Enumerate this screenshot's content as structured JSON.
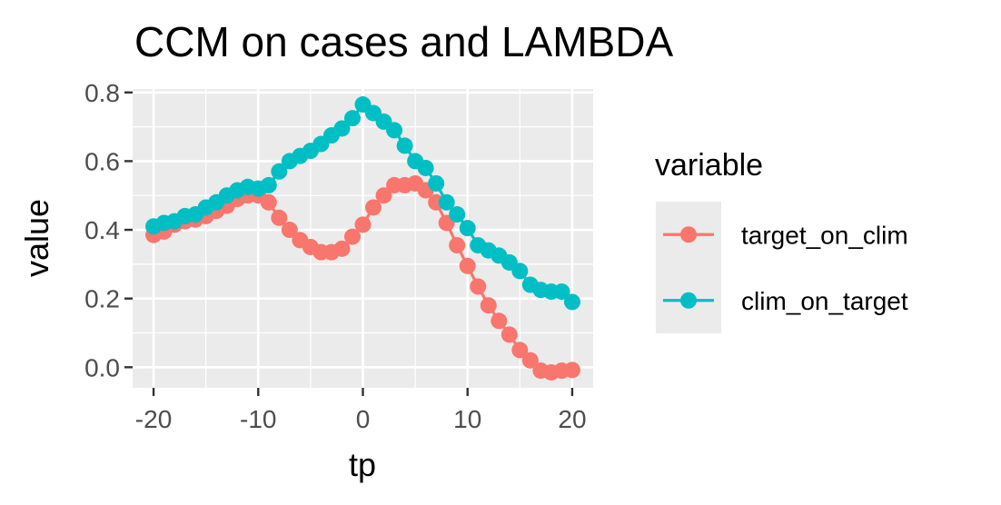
{
  "chart_data": {
    "type": "line",
    "title": "CCM on cases and LAMBDA",
    "xlabel": "tp",
    "ylabel": "value",
    "xlim": [
      -22,
      22
    ],
    "ylim": [
      -0.06,
      0.81
    ],
    "x_ticks": [
      -20,
      -10,
      0,
      10,
      20
    ],
    "x_tick_labels": [
      "-20",
      "-10",
      "0",
      "10",
      "20"
    ],
    "x_minor_ticks": [
      -15,
      -5,
      5,
      15
    ],
    "y_ticks": [
      0.0,
      0.2,
      0.4,
      0.6,
      0.8
    ],
    "y_tick_labels": [
      "0.0",
      "0.2",
      "0.4",
      "0.6",
      "0.8"
    ],
    "y_minor_ticks": [
      0.1,
      0.3,
      0.5,
      0.7
    ],
    "grid": true,
    "panel_background": "#ebebeb",
    "legend": {
      "title": "variable",
      "position": "right"
    },
    "x": [
      -20,
      -19,
      -18,
      -17,
      -16,
      -15,
      -14,
      -13,
      -12,
      -11,
      -10,
      -9,
      -8,
      -7,
      -6,
      -5,
      -4,
      -3,
      -2,
      -1,
      0,
      1,
      2,
      3,
      4,
      5,
      6,
      7,
      8,
      9,
      10,
      11,
      12,
      13,
      14,
      15,
      16,
      17,
      18,
      19,
      20
    ],
    "series": [
      {
        "name": "target_on_clim",
        "color": "#F8766D",
        "values": [
          0.385,
          0.395,
          0.415,
          0.425,
          0.43,
          0.44,
          0.455,
          0.47,
          0.49,
          0.5,
          0.5,
          0.48,
          0.435,
          0.4,
          0.37,
          0.35,
          0.335,
          0.335,
          0.345,
          0.38,
          0.415,
          0.465,
          0.5,
          0.53,
          0.53,
          0.535,
          0.515,
          0.48,
          0.42,
          0.355,
          0.295,
          0.235,
          0.18,
          0.135,
          0.095,
          0.05,
          0.02,
          -0.01,
          -0.015,
          -0.01,
          -0.008
        ]
      },
      {
        "name": "clim_on_target",
        "color": "#00BFC4",
        "values": [
          0.41,
          0.42,
          0.425,
          0.44,
          0.445,
          0.465,
          0.48,
          0.5,
          0.515,
          0.525,
          0.52,
          0.53,
          0.57,
          0.6,
          0.615,
          0.63,
          0.65,
          0.675,
          0.695,
          0.725,
          0.765,
          0.74,
          0.715,
          0.69,
          0.645,
          0.6,
          0.58,
          0.535,
          0.48,
          0.445,
          0.405,
          0.355,
          0.34,
          0.325,
          0.305,
          0.28,
          0.24,
          0.225,
          0.22,
          0.22,
          0.19
        ]
      }
    ]
  }
}
